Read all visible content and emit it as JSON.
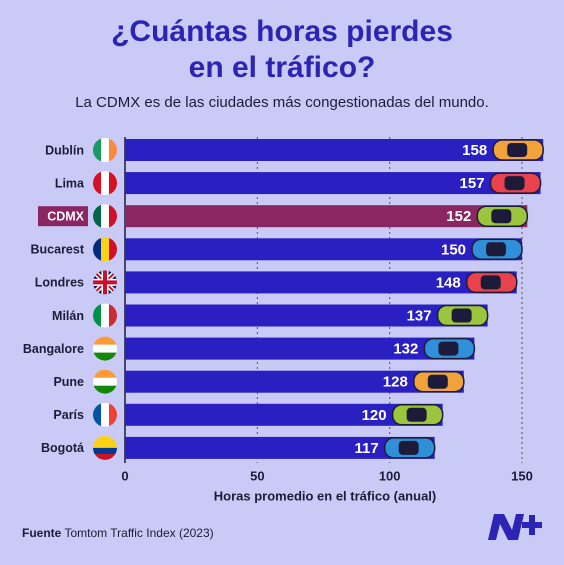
{
  "chart_data": {
    "type": "bar",
    "orientation": "horizontal",
    "title": "¿Cuántas horas pierdes en el tráfico?",
    "subtitle": "La CDMX es de las ciudades más congestionadas del mundo.",
    "categories": [
      "Dublín",
      "Lima",
      "CDMX",
      "Bucarest",
      "Londres",
      "Milán",
      "Bangalore",
      "Pune",
      "París",
      "Bogotá"
    ],
    "values": [
      158,
      157,
      152,
      150,
      148,
      137,
      132,
      128,
      120,
      117
    ],
    "color": "#2a1fc0",
    "highlight_color": "#8a2662",
    "highlight_index": 2,
    "xlim": [
      0,
      160
    ],
    "xticks": [
      0,
      50,
      100,
      150
    ],
    "grid": true,
    "x_label": "Horas promedio en el tráfico (anual)",
    "source_label": "Fuente",
    "source_text": "Tomtom Traffic Index (2023)"
  }
}
